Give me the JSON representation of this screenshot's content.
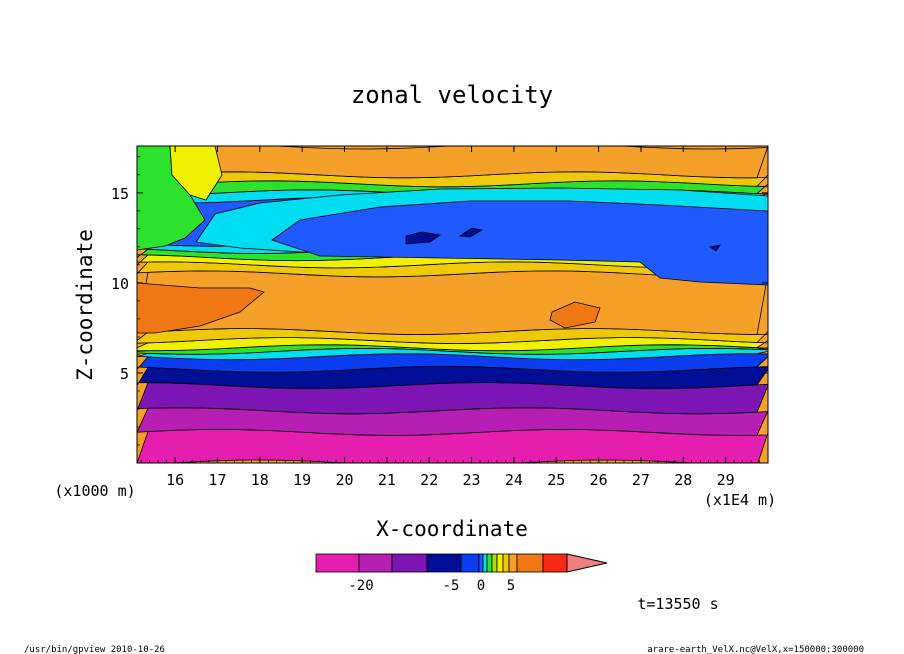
{
  "chart_data": {
    "type": "heatmap",
    "title": "zonal velocity",
    "xlabel": "X-coordinate",
    "ylabel": "Z-coordinate",
    "x_unit_label": "(x1E4 m)",
    "y_unit_label": "(x1000 m)",
    "xlim": [
      15.1,
      30.0
    ],
    "ylim": [
      0,
      17.6
    ],
    "x_ticks": [
      "16",
      "17",
      "18",
      "19",
      "20",
      "21",
      "22",
      "23",
      "24",
      "25",
      "26",
      "27",
      "28",
      "29"
    ],
    "y_ticks": [
      "5",
      "10",
      "15"
    ],
    "time_label": "t=13550 s",
    "colorbar": {
      "tick_labels": [
        "-20",
        "-5",
        "0",
        "5"
      ],
      "levels": [
        -25,
        -20,
        -15,
        -10,
        -5,
        -4,
        -3,
        -2,
        -1,
        0,
        1,
        2,
        5,
        10,
        20
      ],
      "colors": [
        "#e61eb0",
        "#b71eb4",
        "#7d14b4",
        "#000f96",
        "#0a3cf0",
        "#1e5aff",
        "#00dcf0",
        "#2ce22c",
        "#aadc0a",
        "#f0f000",
        "#f0c80a",
        "#f5a028",
        "#f07814",
        "#fa2814",
        "#f08080"
      ],
      "extend_arrow": true
    },
    "bands": [
      {
        "z": 0.0,
        "color": "#e61eb0"
      },
      {
        "z": 1.7,
        "color": "#b71eb4"
      },
      {
        "z": 2.9,
        "color": "#7d14b4"
      },
      {
        "z": 4.3,
        "color": "#000f96"
      },
      {
        "z": 5.2,
        "color": "#0a3cf0"
      },
      {
        "z": 5.9,
        "color": "#00dcf0"
      },
      {
        "z": 6.2,
        "color": "#2ce22c"
      },
      {
        "z": 6.4,
        "color": "#f0f000"
      },
      {
        "z": 6.8,
        "color": "#f0c80a"
      },
      {
        "z": 7.3,
        "color": "#f5a028"
      },
      {
        "z": 10.5,
        "color": "#f0c80a"
      },
      {
        "z": 11.0,
        "color": "#f0f000"
      },
      {
        "z": 11.4,
        "color": "#2ce22c"
      },
      {
        "z": 11.8,
        "color": "#00dcf0"
      },
      {
        "z": 12.2,
        "color": "#1e5aff"
      },
      {
        "z": 14.6,
        "color": "#00dcf0"
      },
      {
        "z": 15.0,
        "color": "#2ce22c"
      },
      {
        "z": 15.5,
        "color": "#f0c80a"
      },
      {
        "z": 16.0,
        "color": "#f5a028"
      }
    ],
    "grid": false
  },
  "footer": {
    "left": "/usr/bin/gpview   2010-10-26",
    "right": "arare-earth_VelX.nc@VelX,x=150000:300000"
  }
}
